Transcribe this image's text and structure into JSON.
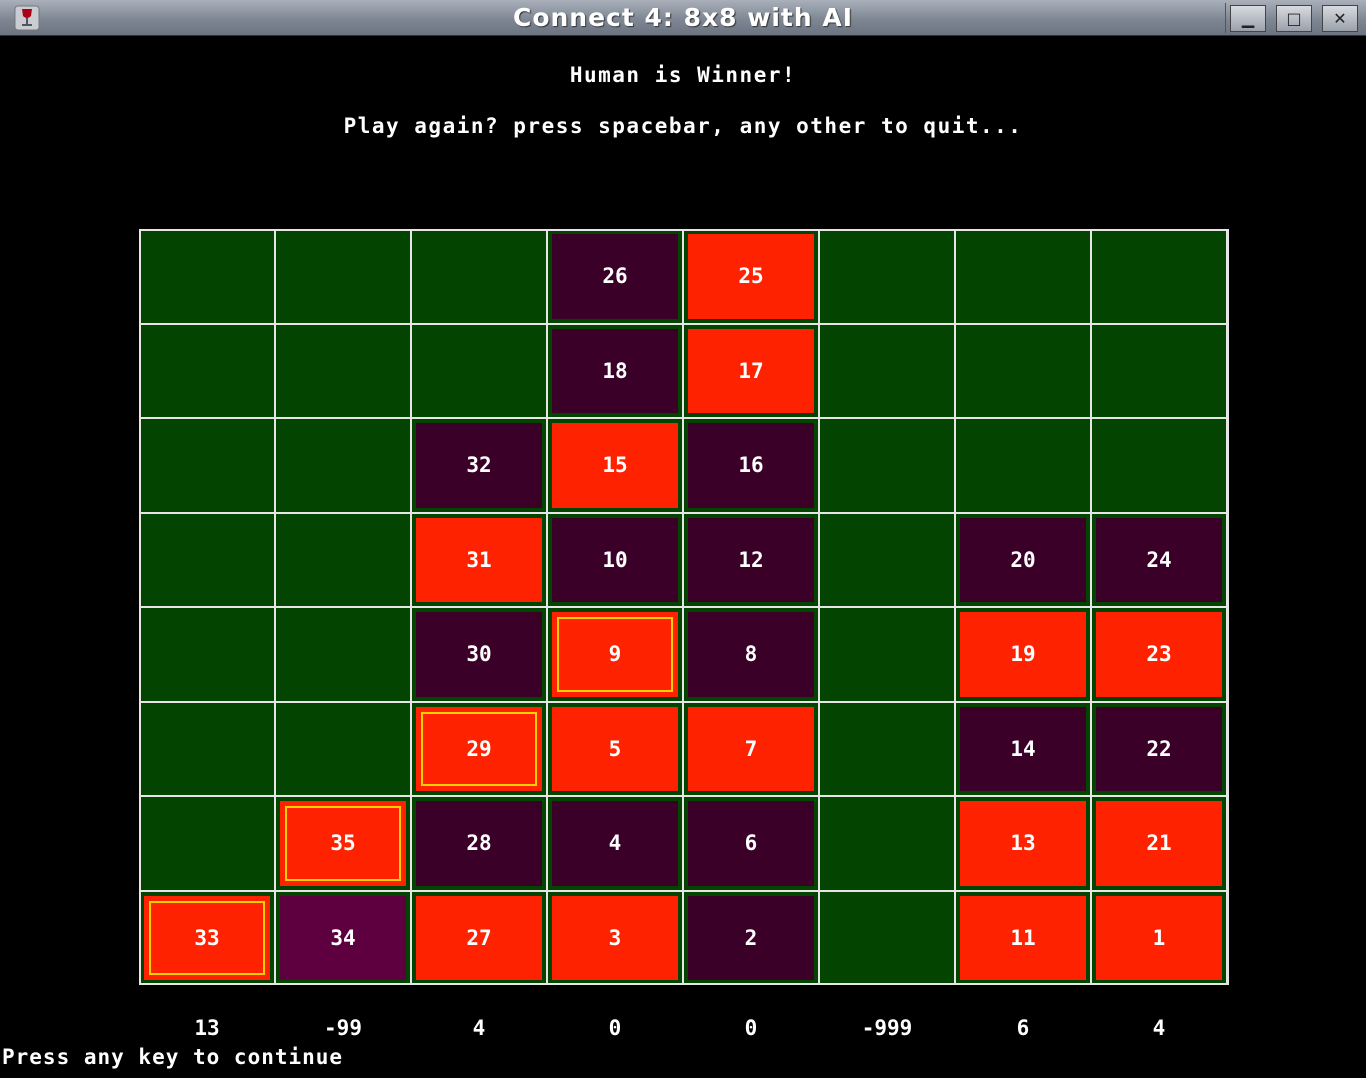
{
  "window": {
    "title": "Connect 4: 8x8 with AI",
    "minimize_label": "▁",
    "maximize_label": "□",
    "close_label": "✕",
    "icon": "wine-glass-icon"
  },
  "status": {
    "winner": "Human is Winner!",
    "prompt": "Play again? press spacebar, any other to quit...",
    "continue": "Press any key to continue"
  },
  "colors": {
    "board": "#024400",
    "human": "#ff2200",
    "ai": "#3a0028",
    "ai_last": "#5e0040",
    "winning_ring": "#ffd000"
  },
  "board": {
    "rows": 8,
    "cols": 8,
    "cells": [
      [
        "",
        "",
        "",
        {
          "m": "26",
          "p": "ai"
        },
        {
          "m": "25",
          "p": "human"
        },
        "",
        "",
        ""
      ],
      [
        "",
        "",
        "",
        {
          "m": "18",
          "p": "ai"
        },
        {
          "m": "17",
          "p": "human"
        },
        "",
        "",
        ""
      ],
      [
        "",
        "",
        {
          "m": "32",
          "p": "ai"
        },
        {
          "m": "15",
          "p": "human"
        },
        {
          "m": "16",
          "p": "ai"
        },
        "",
        "",
        ""
      ],
      [
        "",
        "",
        {
          "m": "31",
          "p": "human"
        },
        {
          "m": "10",
          "p": "ai"
        },
        {
          "m": "12",
          "p": "ai"
        },
        "",
        {
          "m": "20",
          "p": "ai"
        },
        {
          "m": "24",
          "p": "ai"
        }
      ],
      [
        "",
        "",
        {
          "m": "30",
          "p": "ai"
        },
        {
          "m": "9",
          "p": "human",
          "win": true
        },
        {
          "m": "8",
          "p": "ai"
        },
        "",
        {
          "m": "19",
          "p": "human"
        },
        {
          "m": "23",
          "p": "human"
        }
      ],
      [
        "",
        "",
        {
          "m": "29",
          "p": "human",
          "win": true
        },
        {
          "m": "5",
          "p": "human"
        },
        {
          "m": "7",
          "p": "human"
        },
        "",
        {
          "m": "14",
          "p": "ai"
        },
        {
          "m": "22",
          "p": "ai"
        }
      ],
      [
        "",
        {
          "m": "35",
          "p": "human",
          "win": true
        },
        {
          "m": "28",
          "p": "ai"
        },
        {
          "m": "4",
          "p": "ai"
        },
        {
          "m": "6",
          "p": "ai"
        },
        "",
        {
          "m": "13",
          "p": "human"
        },
        {
          "m": "21",
          "p": "human"
        }
      ],
      [
        {
          "m": "33",
          "p": "human",
          "win": true
        },
        {
          "m": "34",
          "p": "ai-hl"
        },
        {
          "m": "27",
          "p": "human"
        },
        {
          "m": "3",
          "p": "human"
        },
        {
          "m": "2",
          "p": "ai"
        },
        "",
        {
          "m": "11",
          "p": "human"
        },
        {
          "m": "1",
          "p": "human"
        }
      ]
    ]
  },
  "column_scores": [
    "13",
    "-99",
    "4",
    "0",
    "0",
    "-999",
    "6",
    "4"
  ]
}
